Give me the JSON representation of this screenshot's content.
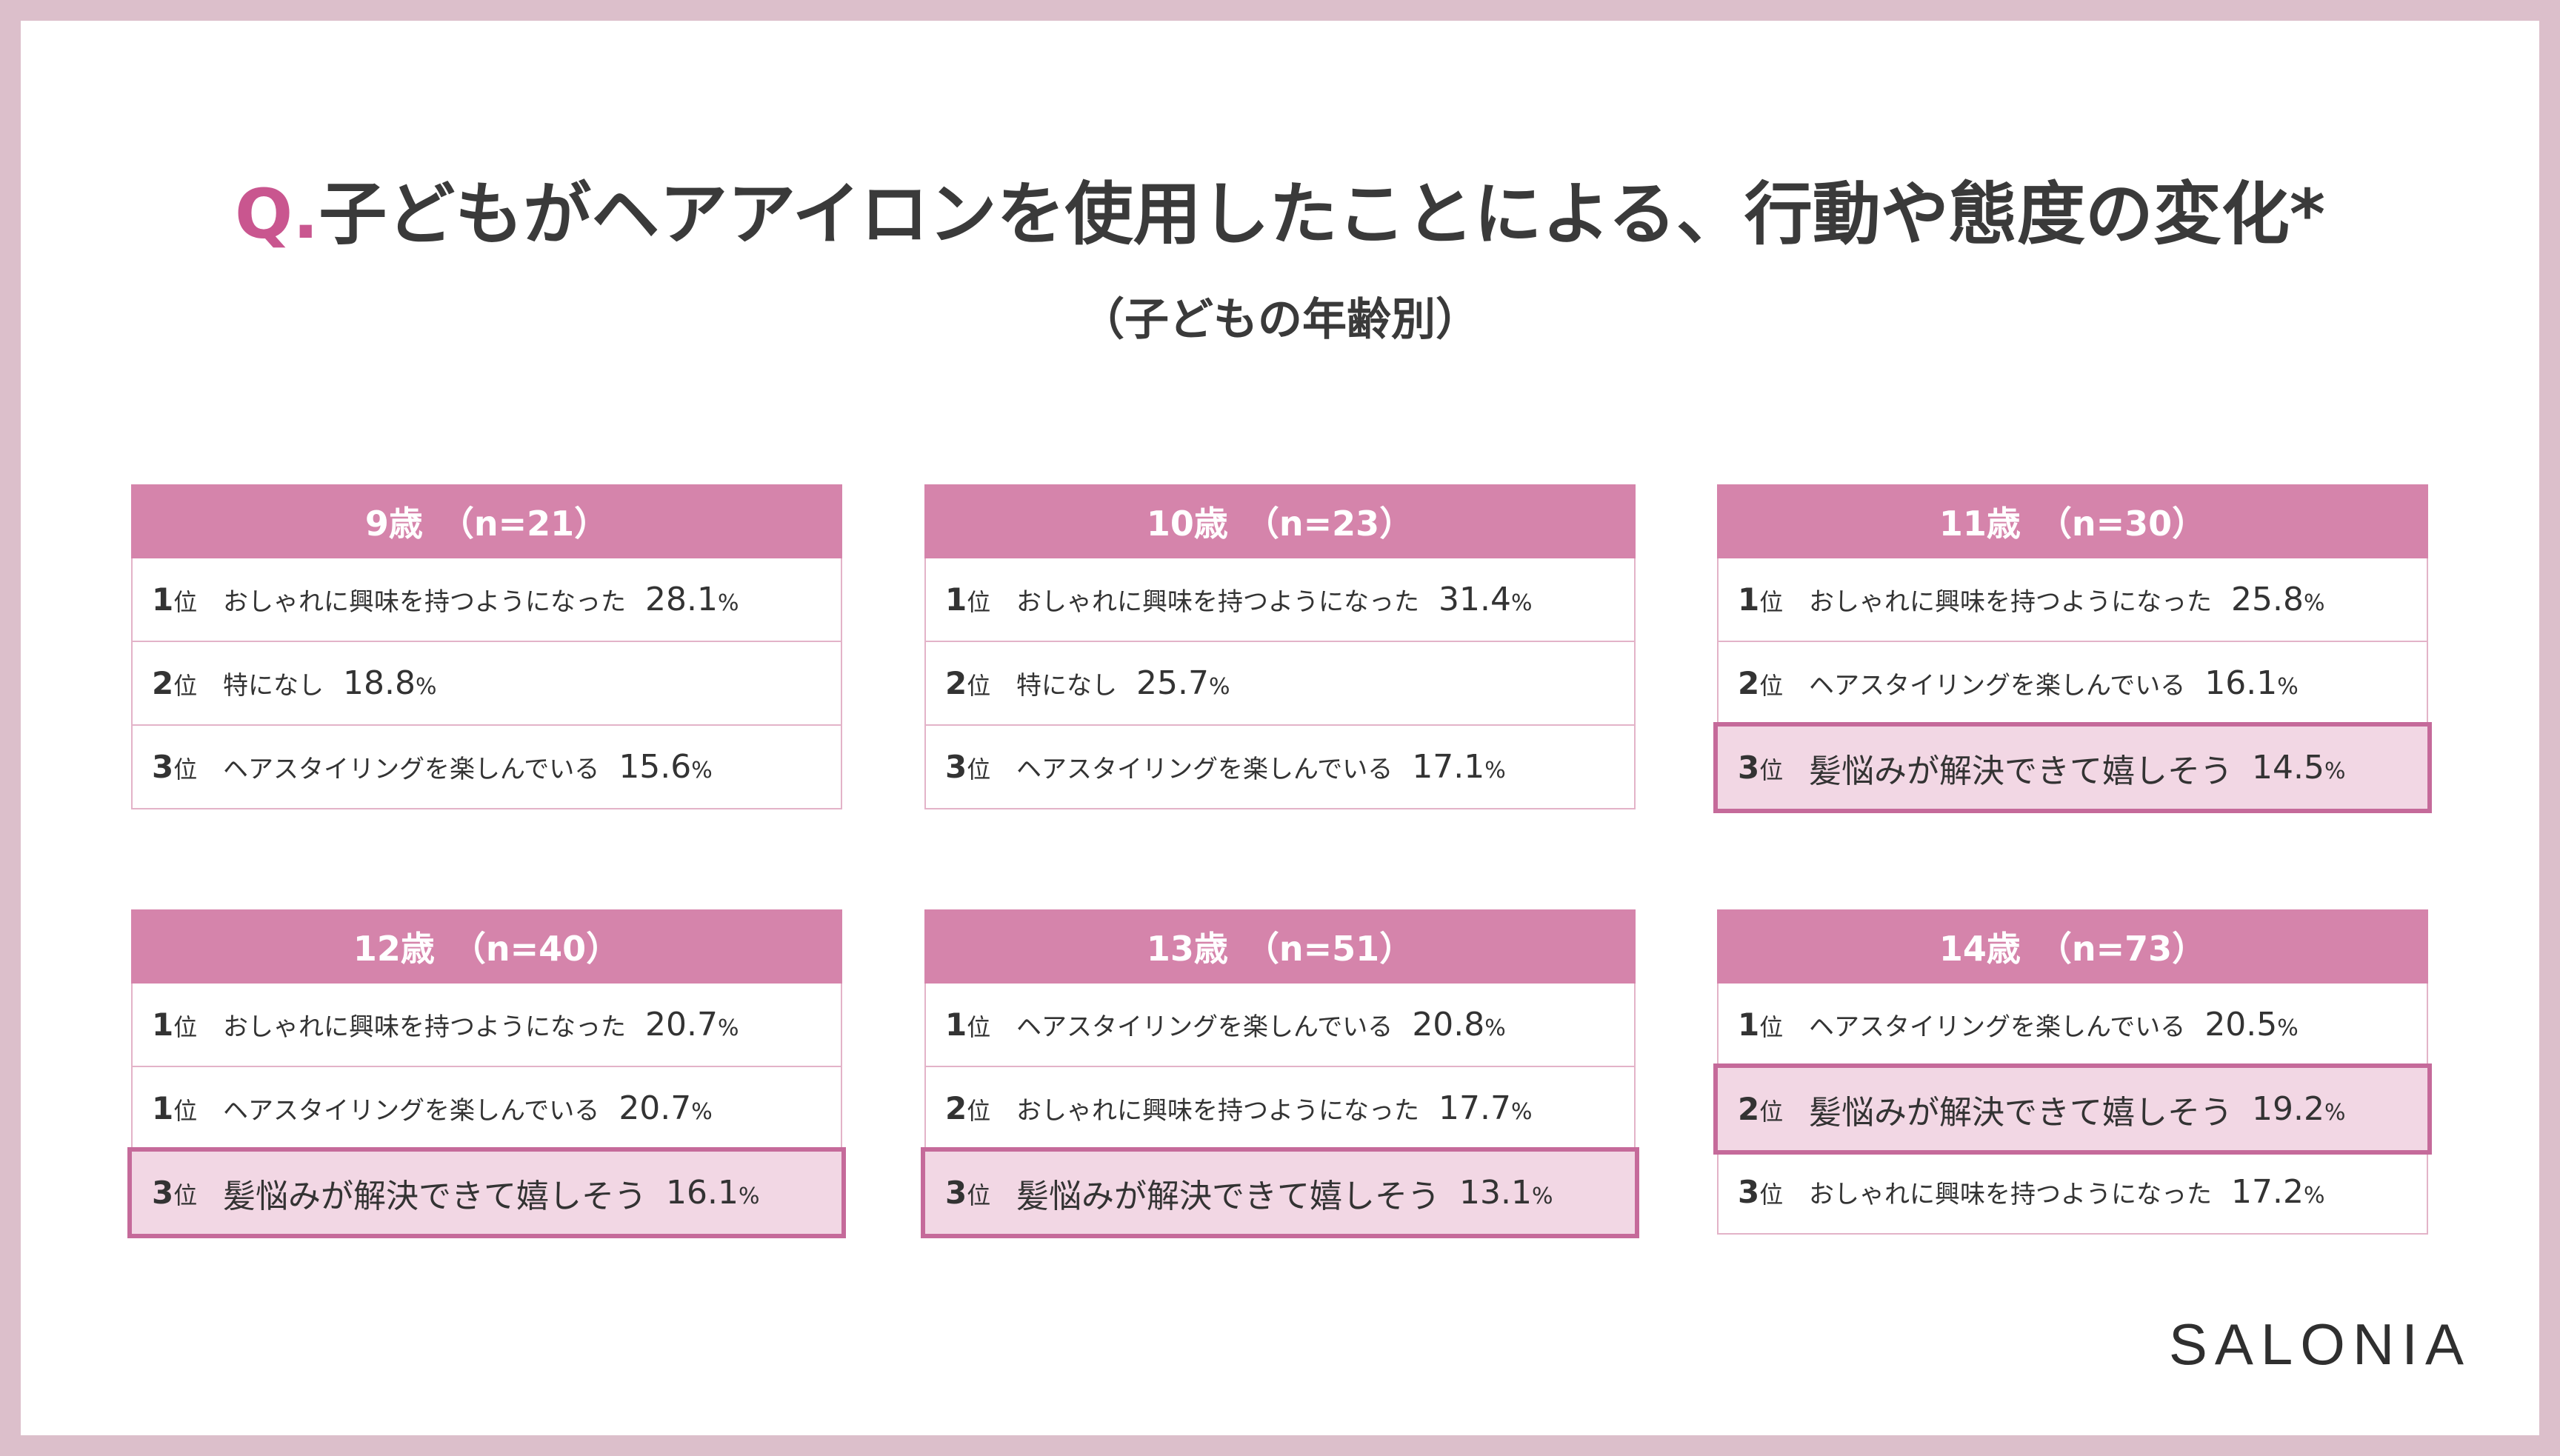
{
  "title": {
    "prefix": "Q.",
    "text": "子どもがヘアアイロンを使用したことによる、行動や態度の変化*"
  },
  "subtitle": "（子どもの年齢別）",
  "brand": "SALONIA",
  "rank_suffix": "位",
  "percent_sign": "%",
  "chart_data": {
    "type": "table",
    "title": "Q.子どもがヘアアイロンを使用したことによる、行動や態度の変化*",
    "subtitle": "（子どもの年齢別）",
    "highlight_label": "髪悩みが解決できて嬉しそう",
    "colors": {
      "header": "#d584ab",
      "highlight_border": "#c56a9a",
      "highlight_fill": "#f2d7e4",
      "accent": "#c9568f"
    },
    "panels": [
      {
        "header": "9歳　（n=21）",
        "rows": [
          {
            "rank": "1",
            "label": "おしゃれに興味を持つようになった",
            "value": "28.1",
            "highlight": false
          },
          {
            "rank": "2",
            "label": "特になし",
            "value": "18.8",
            "highlight": false
          },
          {
            "rank": "3",
            "label": "ヘアスタイリングを楽しんでいる",
            "value": "15.6",
            "highlight": false
          }
        ]
      },
      {
        "header": "10歳　（n=23）",
        "rows": [
          {
            "rank": "1",
            "label": "おしゃれに興味を持つようになった",
            "value": "31.4",
            "highlight": false
          },
          {
            "rank": "2",
            "label": "特になし",
            "value": "25.7",
            "highlight": false
          },
          {
            "rank": "3",
            "label": "ヘアスタイリングを楽しんでいる",
            "value": "17.1",
            "highlight": false
          }
        ]
      },
      {
        "header": "11歳　（n=30）",
        "rows": [
          {
            "rank": "1",
            "label": "おしゃれに興味を持つようになった",
            "value": "25.8",
            "highlight": false
          },
          {
            "rank": "2",
            "label": "ヘアスタイリングを楽しんでいる",
            "value": "16.1",
            "highlight": false
          },
          {
            "rank": "3",
            "label": "髪悩みが解決できて嬉しそう",
            "value": "14.5",
            "highlight": true
          }
        ]
      },
      {
        "header": "12歳　（n=40）",
        "rows": [
          {
            "rank": "1",
            "label": "おしゃれに興味を持つようになった",
            "value": "20.7",
            "highlight": false
          },
          {
            "rank": "1",
            "label": "ヘアスタイリングを楽しんでいる",
            "value": "20.7",
            "highlight": false
          },
          {
            "rank": "3",
            "label": "髪悩みが解決できて嬉しそう",
            "value": "16.1",
            "highlight": true
          }
        ]
      },
      {
        "header": "13歳　（n=51）",
        "rows": [
          {
            "rank": "1",
            "label": "ヘアスタイリングを楽しんでいる",
            "value": "20.8",
            "highlight": false
          },
          {
            "rank": "2",
            "label": "おしゃれに興味を持つようになった",
            "value": "17.7",
            "highlight": false
          },
          {
            "rank": "3",
            "label": "髪悩みが解決できて嬉しそう",
            "value": "13.1",
            "highlight": true
          }
        ]
      },
      {
        "header": "14歳　（n=73）",
        "rows": [
          {
            "rank": "1",
            "label": "ヘアスタイリングを楽しんでいる",
            "value": "20.5",
            "highlight": false
          },
          {
            "rank": "2",
            "label": "髪悩みが解決できて嬉しそう",
            "value": "19.2",
            "highlight": true
          },
          {
            "rank": "3",
            "label": "おしゃれに興味を持つようになった",
            "value": "17.2",
            "highlight": false
          }
        ]
      }
    ]
  }
}
